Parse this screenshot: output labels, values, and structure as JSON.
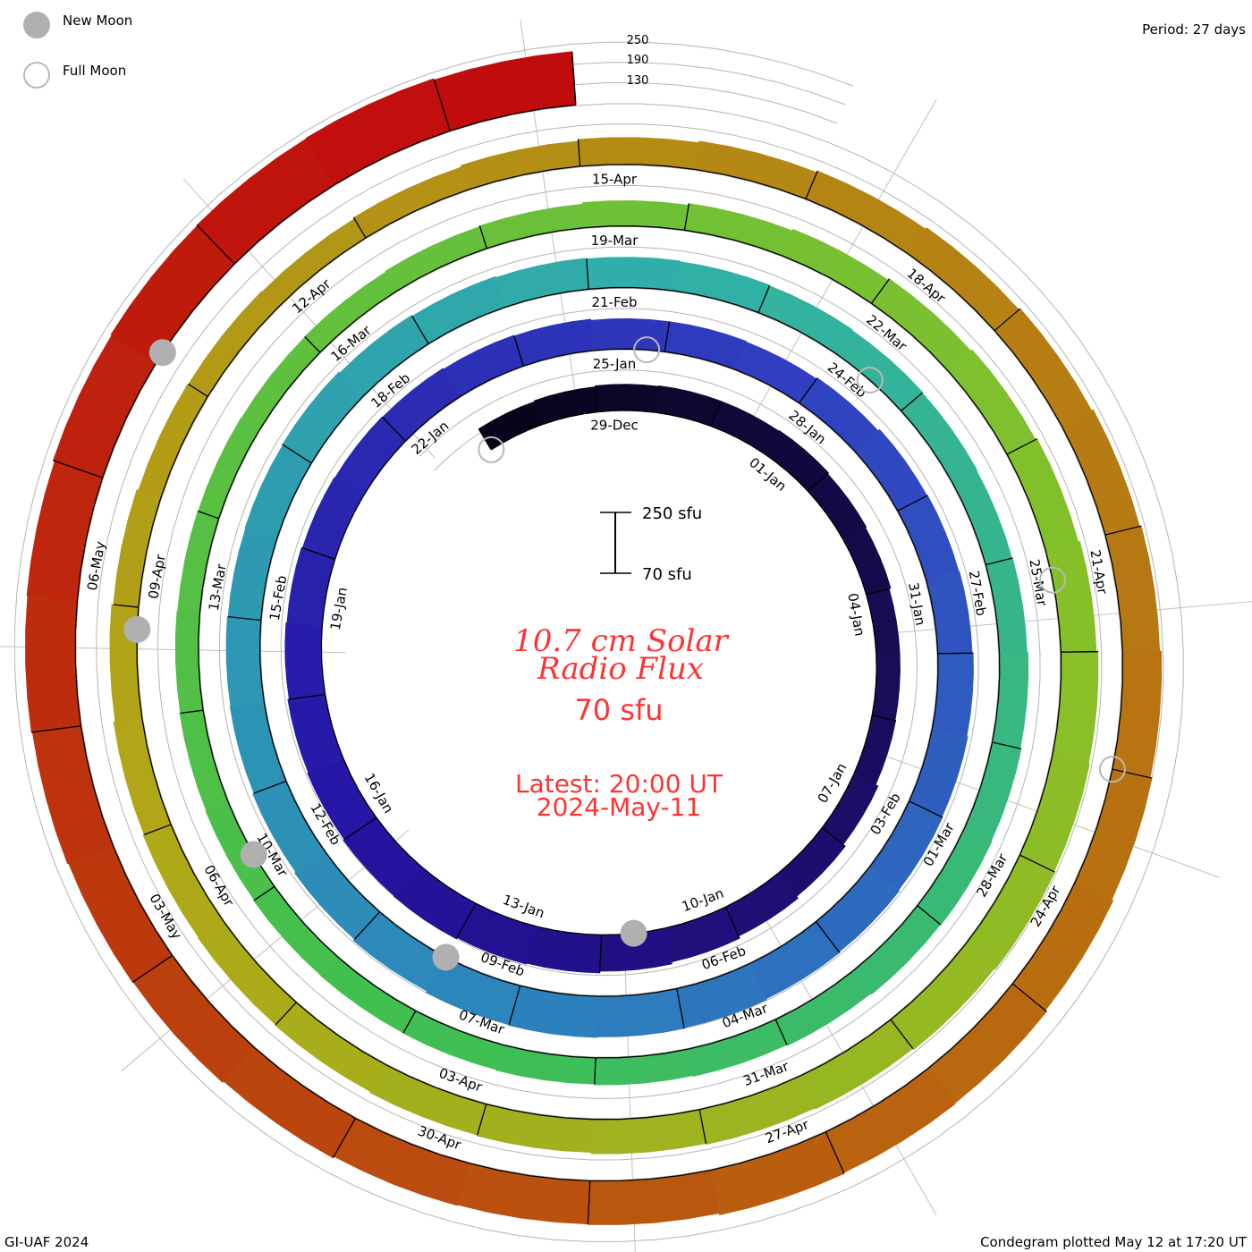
{
  "legend": {
    "new_moon": "New Moon",
    "full_moon": "Full Moon"
  },
  "period": "Period: 27 days",
  "ref_levels": [
    "250",
    "190",
    "130"
  ],
  "scale": {
    "top": "250 sfu",
    "bottom": "70 sfu"
  },
  "center": {
    "title_line1": "10.7 cm Solar",
    "title_line2": "Radio Flux",
    "baseline": "70 sfu",
    "latest_line1": "Latest: 20:00 UT",
    "latest_line2": "2024-May-11"
  },
  "footer": {
    "left": "GI-UAF 2024",
    "right": "Condegram plotted May 12 at 17:20 UT"
  },
  "colors": {
    "text_red": "#ff3333",
    "moon": "#b0b0b0",
    "ref_line": "#b4b4b4"
  },
  "chart_data": {
    "type": "condegram-spiral",
    "title": "10.7 cm Solar Radio Flux",
    "period_days": 27,
    "baseline_sfu": 70,
    "scale_max_sfu": 250,
    "first_day": "27-Dec",
    "values_sfu": [
      142,
      145,
      148,
      150,
      150,
      152,
      148,
      145,
      140,
      140,
      142,
      150,
      158,
      165,
      172,
      178,
      183,
      186,
      190,
      188,
      185,
      182,
      178,
      175,
      172,
      170,
      168,
      165,
      163,
      160,
      160,
      158,
      162,
      168,
      170,
      172,
      175,
      178,
      180,
      183,
      185,
      188,
      190,
      192,
      190,
      185,
      180,
      176,
      172,
      170,
      168,
      170,
      172,
      168,
      165,
      162,
      160,
      158,
      156,
      154,
      152,
      150,
      152,
      155,
      158,
      160,
      158,
      155,
      152,
      150,
      148,
      146,
      145,
      144,
      142,
      140,
      138,
      136,
      135,
      134,
      135,
      138,
      140,
      145,
      150,
      155,
      160,
      165,
      170,
      175,
      180,
      183,
      185,
      182,
      178,
      175,
      172,
      168,
      165,
      162,
      160,
      158,
      155,
      150,
      145,
      140,
      138,
      136,
      140,
      145,
      150,
      155,
      160,
      165,
      170,
      175,
      180,
      185,
      190,
      195,
      200,
      202,
      205,
      200,
      198,
      200,
      205,
      210,
      212,
      215,
      218,
      220,
      225,
      228,
      230,
      232,
      228
    ],
    "date_labels": [
      "29-Dec",
      "01-Jan",
      "04-Jan",
      "07-Jan",
      "10-Jan",
      "13-Jan",
      "16-Jan",
      "19-Jan",
      "22-Jan",
      "25-Jan",
      "28-Jan",
      "31-Jan",
      "03-Feb",
      "06-Feb",
      "09-Feb",
      "12-Feb",
      "15-Feb",
      "18-Feb",
      "21-Feb",
      "24-Feb",
      "27-Feb",
      "01-Mar",
      "04-Mar",
      "07-Mar",
      "10-Mar",
      "13-Mar",
      "16-Mar",
      "19-Mar",
      "22-Mar",
      "25-Mar",
      "28-Mar",
      "31-Mar",
      "03-Apr",
      "06-Apr",
      "09-Apr",
      "12-Apr",
      "15-Apr",
      "18-Apr",
      "21-Apr",
      "24-Apr",
      "27-Apr",
      "30-Apr",
      "03-May",
      "06-May"
    ],
    "label_step_days": 3,
    "new_moon_days_from_29Dec": [
      13.5,
      43.0,
      72.4,
      101.8,
      131.1
    ],
    "full_moon_days_from_29Dec": [
      -2.0,
      27.75,
      57.5,
      87.3,
      116.0
    ],
    "colormap": [
      {
        "day": -2,
        "color": "#080418"
      },
      {
        "day": 8,
        "color": "#1a0c5c"
      },
      {
        "day": 18,
        "color": "#2414a4"
      },
      {
        "day": 30,
        "color": "#3040c0"
      },
      {
        "day": 42,
        "color": "#2c84bc"
      },
      {
        "day": 55,
        "color": "#30b0a8"
      },
      {
        "day": 70,
        "color": "#40c050"
      },
      {
        "day": 88,
        "color": "#88c028"
      },
      {
        "day": 100,
        "color": "#b0a818"
      },
      {
        "day": 118,
        "color": "#b86c10"
      },
      {
        "day": 134,
        "color": "#c00c0c"
      }
    ]
  }
}
